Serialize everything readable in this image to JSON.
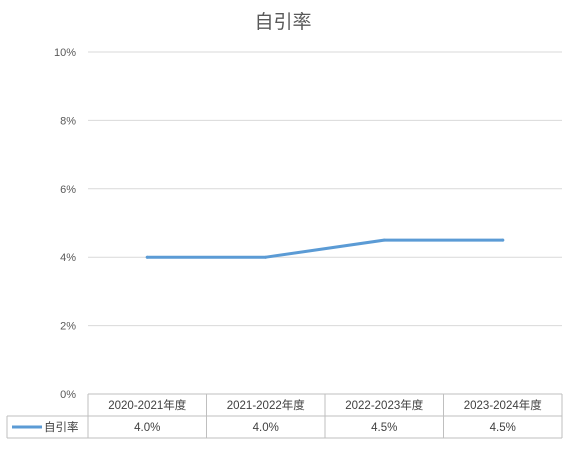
{
  "chart_data": {
    "type": "line",
    "title": "自引率",
    "categories": [
      "2020-2021年度",
      "2021-2022年度",
      "2022-2023年度",
      "2023-2024年度"
    ],
    "series": [
      {
        "name": "自引率",
        "values": [
          4.0,
          4.0,
          4.5,
          4.5
        ],
        "color": "#5B9BD5"
      }
    ],
    "y_ticks": [
      "0%",
      "2%",
      "4%",
      "6%",
      "8%",
      "10%"
    ],
    "data_table": {
      "row_label": "自引率",
      "values": [
        "4.0%",
        "4.0%",
        "4.5%",
        "4.5%"
      ]
    },
    "ylim": [
      0,
      10
    ],
    "grid": true,
    "legend": "data-table"
  }
}
